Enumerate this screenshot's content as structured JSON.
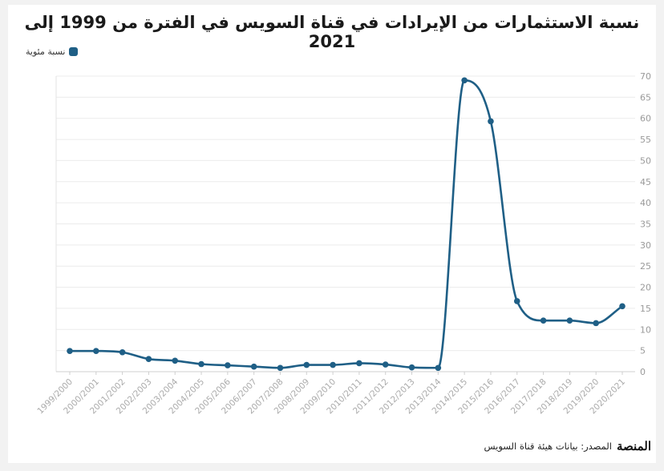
{
  "chart_data": {
    "type": "line",
    "title": "نسبة الاستثمارات من الإيرادات في قناة السويس في الفترة من 1999 إلى 2021",
    "legend_position": "top-left",
    "grid": true,
    "y_axis_side": "right",
    "ylim": [
      0,
      70
    ],
    "yticks": [
      0,
      5,
      10,
      15,
      20,
      25,
      30,
      35,
      40,
      45,
      50,
      55,
      60,
      65,
      70
    ],
    "categories": [
      "1999/2000",
      "2000/2001",
      "2001/2002",
      "2002/2003",
      "2003/2004",
      "2004/2005",
      "2005/2006",
      "2006/2007",
      "2007/2008",
      "2008/2009",
      "2009/2010",
      "2010/2011",
      "2011/2012",
      "2012/2013",
      "2013/2014",
      "2014/2015",
      "2015/2016",
      "2016/2017",
      "2017/2018",
      "2018/2019",
      "2019/2020",
      "2020/2021"
    ],
    "series": [
      {
        "name": "نسبة مئوية",
        "color": "#1f5f86",
        "values": [
          4.9,
          4.9,
          4.6,
          3.0,
          2.6,
          1.8,
          1.5,
          1.2,
          0.9,
          1.6,
          1.6,
          2.0,
          1.7,
          1.0,
          0.9,
          69.0,
          59.3,
          16.7,
          12.1,
          12.1,
          11.5,
          15.5
        ]
      }
    ]
  },
  "footer": {
    "logo_text": "المنصة",
    "source": "المصدر: بيانات هيئة قناة السويس"
  }
}
